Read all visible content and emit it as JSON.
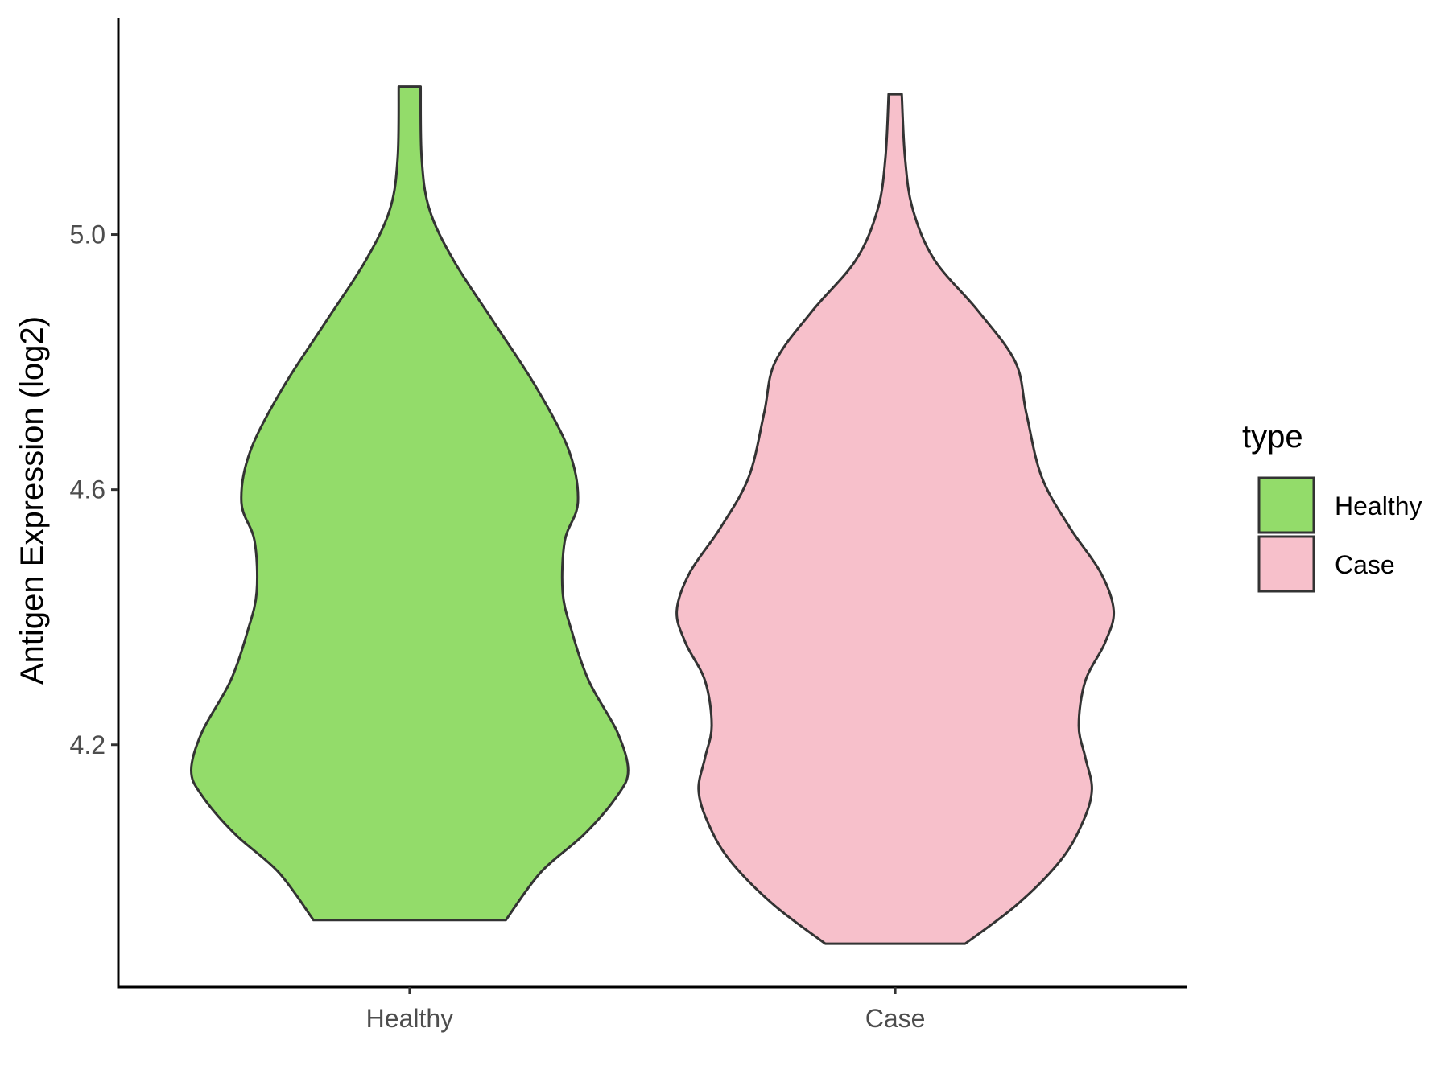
{
  "chart_data": {
    "type": "violin",
    "title": "",
    "xlabel": "",
    "ylabel": "Antigen Expression (log2)",
    "ylim": [
      3.82,
      5.34
    ],
    "yticks": [
      4.2,
      4.6,
      5.0
    ],
    "ytick_labels": [
      "4.2",
      "4.6",
      "5.0"
    ],
    "categories": [
      "Healthy",
      "Case"
    ],
    "legend": {
      "title": "type",
      "position": "right",
      "entries": [
        {
          "label": "Healthy",
          "color": "#93dc6a"
        },
        {
          "label": "Case",
          "color": "#f7c0cb"
        }
      ]
    },
    "series": [
      {
        "name": "Healthy",
        "color": "#93dc6a",
        "min": 3.925,
        "max": 5.232,
        "profile": [
          [
            3.925,
            0.44
          ],
          [
            4.0,
            0.6
          ],
          [
            4.06,
            0.8
          ],
          [
            4.12,
            0.95
          ],
          [
            4.16,
            1.0
          ],
          [
            4.22,
            0.95
          ],
          [
            4.3,
            0.82
          ],
          [
            4.38,
            0.74
          ],
          [
            4.44,
            0.7
          ],
          [
            4.52,
            0.71
          ],
          [
            4.58,
            0.77
          ],
          [
            4.66,
            0.73
          ],
          [
            4.76,
            0.58
          ],
          [
            4.86,
            0.39
          ],
          [
            4.96,
            0.2
          ],
          [
            5.04,
            0.09
          ],
          [
            5.12,
            0.055
          ],
          [
            5.232,
            0.05
          ]
        ]
      },
      {
        "name": "Case",
        "color": "#f7c0cb",
        "min": 3.888,
        "max": 5.22,
        "profile": [
          [
            3.888,
            0.32
          ],
          [
            3.95,
            0.56
          ],
          [
            4.02,
            0.76
          ],
          [
            4.08,
            0.86
          ],
          [
            4.13,
            0.9
          ],
          [
            4.18,
            0.87
          ],
          [
            4.23,
            0.84
          ],
          [
            4.3,
            0.87
          ],
          [
            4.36,
            0.96
          ],
          [
            4.41,
            1.0
          ],
          [
            4.47,
            0.94
          ],
          [
            4.54,
            0.8
          ],
          [
            4.62,
            0.67
          ],
          [
            4.72,
            0.6
          ],
          [
            4.8,
            0.55
          ],
          [
            4.88,
            0.38
          ],
          [
            4.96,
            0.18
          ],
          [
            5.04,
            0.08
          ],
          [
            5.12,
            0.045
          ],
          [
            5.22,
            0.03
          ]
        ]
      }
    ],
    "grid": false
  }
}
